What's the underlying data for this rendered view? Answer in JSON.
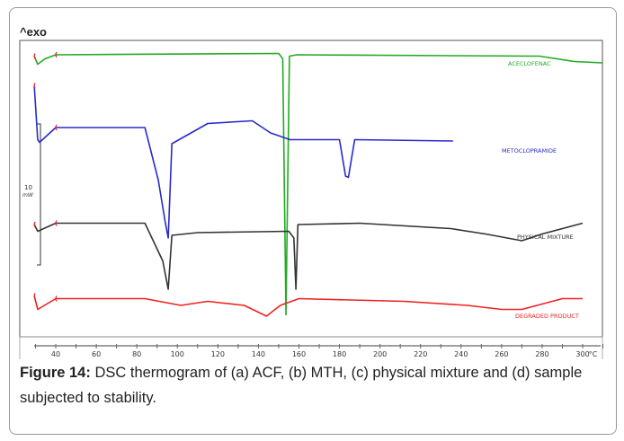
{
  "chart_data": {
    "type": "line",
    "title": "^exo",
    "xlabel": "°C",
    "ylabel": "10 mW",
    "scale_bar_mW": 10,
    "xlim": [
      27,
      312
    ],
    "ylim": [
      0,
      22.5
    ],
    "xticks": [
      40,
      60,
      80,
      100,
      120,
      140,
      160,
      180,
      200,
      220,
      240,
      260,
      280,
      300
    ],
    "grid": false,
    "series": [
      {
        "name": "ACECLOFENAC",
        "color": "#22aa22",
        "points": [
          [
            29.4,
            21.5
          ],
          [
            31.1,
            20.9
          ],
          [
            34.7,
            21.3
          ],
          [
            40,
            21.6
          ],
          [
            150,
            21.7
          ],
          [
            152,
            21.3
          ],
          [
            153.6,
            2.3
          ],
          [
            155.3,
            21.5
          ],
          [
            159,
            21.6
          ],
          [
            278.7,
            21.5
          ],
          [
            296,
            21.1
          ],
          [
            309.7,
            21.0
          ]
        ]
      },
      {
        "name": "METOCLOPRAMIDE",
        "color": "#2a2acc",
        "points": [
          [
            29.4,
            19.3
          ],
          [
            31.1,
            15.3
          ],
          [
            32,
            15.1
          ],
          [
            40,
            16.2
          ],
          [
            84,
            16.2
          ],
          [
            90.6,
            12.3
          ],
          [
            94,
            9.2
          ],
          [
            95.5,
            8.0
          ],
          [
            97.3,
            15.0
          ],
          [
            115,
            16.5
          ],
          [
            137,
            16.7
          ],
          [
            146,
            15.8
          ],
          [
            155.6,
            15.3
          ],
          [
            180,
            15.3
          ],
          [
            183,
            12.6
          ],
          [
            184.4,
            12.5
          ],
          [
            187.5,
            15.3
          ],
          [
            236,
            15.2
          ]
        ]
      },
      {
        "name": "PHYSICAL MIXTURE",
        "color": "#333333",
        "points": [
          [
            29.4,
            9.0
          ],
          [
            31.1,
            8.5
          ],
          [
            40,
            9.1
          ],
          [
            84,
            9.1
          ],
          [
            92.8,
            6.3
          ],
          [
            95.5,
            4.2
          ],
          [
            97.3,
            8.2
          ],
          [
            110,
            8.4
          ],
          [
            155,
            8.5
          ],
          [
            157.5,
            8.0
          ],
          [
            158.5,
            4.2
          ],
          [
            159.5,
            9.0
          ],
          [
            190,
            9.1
          ],
          [
            235,
            8.7
          ],
          [
            252,
            8.3
          ],
          [
            270,
            7.8
          ],
          [
            280,
            8.3
          ],
          [
            300,
            9.1
          ]
        ]
      },
      {
        "name": "DEGRADED PRODUCT",
        "color": "#ee2222",
        "points": [
          [
            29.4,
            3.7
          ],
          [
            31.1,
            2.7
          ],
          [
            40,
            3.5
          ],
          [
            84,
            3.5
          ],
          [
            101.7,
            3.0
          ],
          [
            115,
            3.3
          ],
          [
            133,
            3.0
          ],
          [
            144,
            2.2
          ],
          [
            150.8,
            3.0
          ],
          [
            160,
            3.5
          ],
          [
            212,
            3.3
          ],
          [
            243,
            3.0
          ],
          [
            260,
            2.7
          ],
          [
            270,
            2.7
          ],
          [
            290,
            3.5
          ],
          [
            300,
            3.5
          ]
        ]
      }
    ]
  },
  "caption": {
    "label": "Figure 14:",
    "text": " DSC thermogram of (a) ACF, (b) MTH, (c) physical mixture and (d) sample subjected to stability."
  }
}
